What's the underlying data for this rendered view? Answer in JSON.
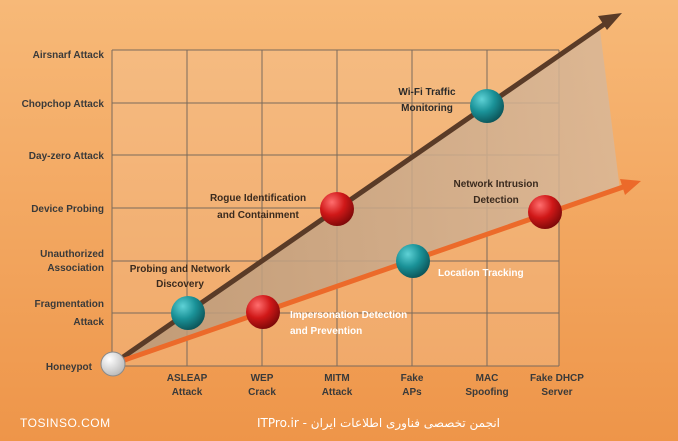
{
  "diagram": {
    "y_axis_labels": [
      [
        "Airsnarf Attack"
      ],
      [
        "Chopchop Attack"
      ],
      [
        "Day-zero Attack"
      ],
      [
        "Device Probing"
      ],
      [
        "Unauthorized",
        "Association"
      ],
      [
        "Fragmentation",
        "Attack"
      ],
      [
        "Honeypot"
      ]
    ],
    "x_axis_labels": [
      [
        "ASLEAP",
        "Attack"
      ],
      [
        "WEP",
        "Crack"
      ],
      [
        "MITM",
        "Attack"
      ],
      [
        "Fake",
        "APs"
      ],
      [
        "MAC",
        "Spoofing"
      ],
      [
        "Fake DHCP",
        "Server"
      ]
    ],
    "annotations": [
      {
        "lines": [
          "Probing and Network",
          "Discovery"
        ],
        "node": "teal"
      },
      {
        "lines": [
          "Impersonation Detection",
          "and Prevention"
        ],
        "node": "red"
      },
      {
        "lines": [
          "Rogue Identification",
          "and Containment"
        ],
        "node": "red"
      },
      {
        "lines": [
          "Location Tracking"
        ],
        "node": "teal"
      },
      {
        "lines": [
          "Wi-Fi Traffic",
          "Monitoring"
        ],
        "node": "teal"
      },
      {
        "lines": [
          "Network Intrusion",
          "Detection"
        ],
        "node": "red"
      }
    ],
    "footer": {
      "left": "TOSINSO.COM",
      "right": "ITPro.ir - انجمن تخصصی فناوری اطلاعات ایران"
    },
    "colors": {
      "background_orange": "#f2a45c",
      "grid_line": "#7a6a5c",
      "upper_arrow": "#5a3b27",
      "lower_arrow": "#ec6a2a",
      "teal_node": "#17878c",
      "red_node": "#d01818"
    }
  }
}
